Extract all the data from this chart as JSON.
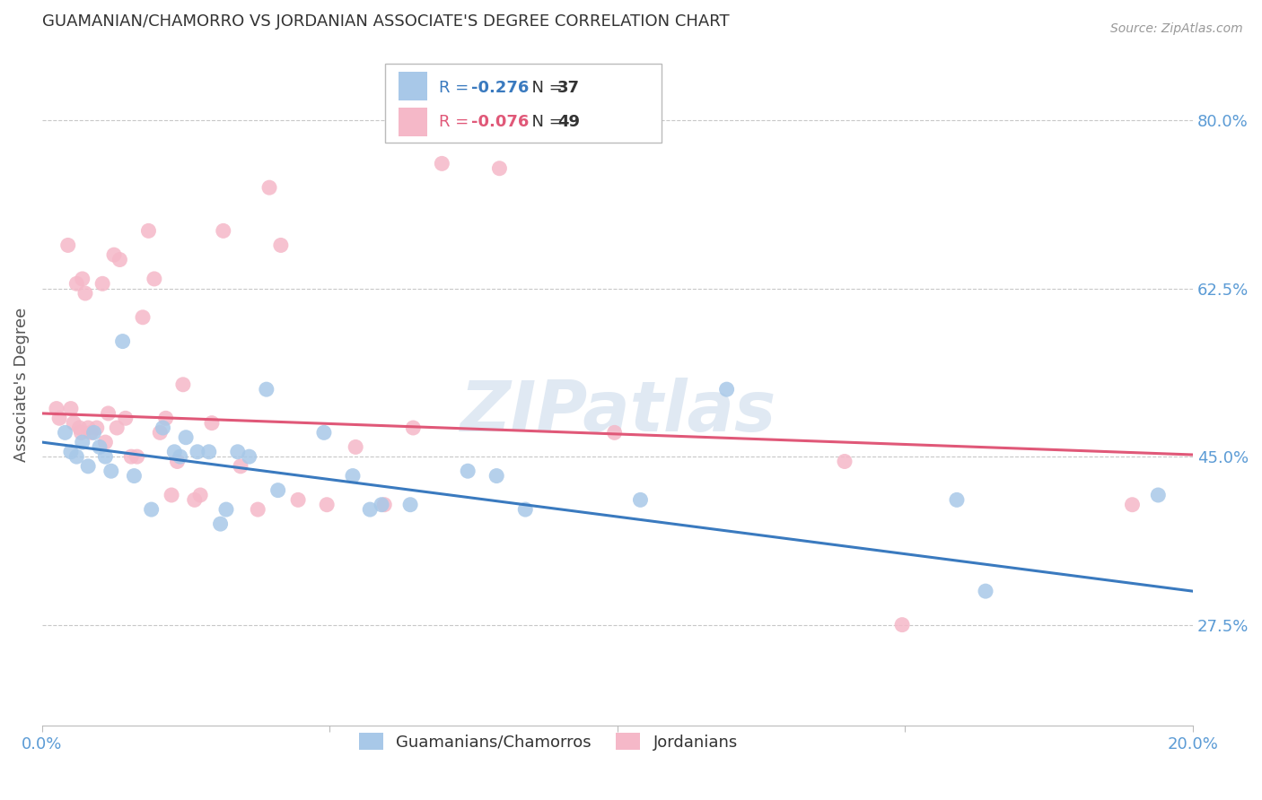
{
  "title": "GUAMANIAN/CHAMORRO VS JORDANIAN ASSOCIATE'S DEGREE CORRELATION CHART",
  "source": "Source: ZipAtlas.com",
  "ylabel": "Associate's Degree",
  "xlim": [
    0.0,
    20.0
  ],
  "ylim": [
    17.0,
    88.0
  ],
  "yticks": [
    27.5,
    45.0,
    62.5,
    80.0
  ],
  "ytick_labels": [
    "27.5%",
    "45.0%",
    "62.5%",
    "80.0%"
  ],
  "blue_R": -0.276,
  "blue_N": 37,
  "pink_R": -0.076,
  "pink_N": 49,
  "blue_color": "#a8c8e8",
  "pink_color": "#f5b8c8",
  "blue_line_color": "#3a7abf",
  "pink_line_color": "#e05878",
  "legend_label_blue": "Guamanians/Chamorros",
  "legend_label_pink": "Jordanians",
  "watermark": "ZIPatlas",
  "background_color": "#ffffff",
  "grid_color": "#c8c8c8",
  "axis_label_color": "#5b9bd5",
  "title_color": "#333333",
  "blue_scatter": [
    [
      0.4,
      47.5
    ],
    [
      0.5,
      45.5
    ],
    [
      0.6,
      45.0
    ],
    [
      0.7,
      46.5
    ],
    [
      0.8,
      44.0
    ],
    [
      0.9,
      47.5
    ],
    [
      1.0,
      46.0
    ],
    [
      1.1,
      45.0
    ],
    [
      1.2,
      43.5
    ],
    [
      1.4,
      57.0
    ],
    [
      1.6,
      43.0
    ],
    [
      1.9,
      39.5
    ],
    [
      2.1,
      48.0
    ],
    [
      2.3,
      45.5
    ],
    [
      2.4,
      45.0
    ],
    [
      2.5,
      47.0
    ],
    [
      2.7,
      45.5
    ],
    [
      2.9,
      45.5
    ],
    [
      3.1,
      38.0
    ],
    [
      3.2,
      39.5
    ],
    [
      3.4,
      45.5
    ],
    [
      3.6,
      45.0
    ],
    [
      3.9,
      52.0
    ],
    [
      4.1,
      41.5
    ],
    [
      4.9,
      47.5
    ],
    [
      5.4,
      43.0
    ],
    [
      5.7,
      39.5
    ],
    [
      5.9,
      40.0
    ],
    [
      6.4,
      40.0
    ],
    [
      7.4,
      43.5
    ],
    [
      7.9,
      43.0
    ],
    [
      8.4,
      39.5
    ],
    [
      10.4,
      40.5
    ],
    [
      11.9,
      52.0
    ],
    [
      15.9,
      40.5
    ],
    [
      16.4,
      31.0
    ],
    [
      19.4,
      41.0
    ]
  ],
  "pink_scatter": [
    [
      0.25,
      50.0
    ],
    [
      0.3,
      49.0
    ],
    [
      0.45,
      67.0
    ],
    [
      0.5,
      50.0
    ],
    [
      0.55,
      48.5
    ],
    [
      0.6,
      63.0
    ],
    [
      0.65,
      48.0
    ],
    [
      0.68,
      47.5
    ],
    [
      0.7,
      63.5
    ],
    [
      0.75,
      62.0
    ],
    [
      0.8,
      48.0
    ],
    [
      0.85,
      47.5
    ],
    [
      0.95,
      48.0
    ],
    [
      1.05,
      63.0
    ],
    [
      1.1,
      46.5
    ],
    [
      1.15,
      49.5
    ],
    [
      1.25,
      66.0
    ],
    [
      1.3,
      48.0
    ],
    [
      1.35,
      65.5
    ],
    [
      1.45,
      49.0
    ],
    [
      1.55,
      45.0
    ],
    [
      1.65,
      45.0
    ],
    [
      1.75,
      59.5
    ],
    [
      1.85,
      68.5
    ],
    [
      1.95,
      63.5
    ],
    [
      2.05,
      47.5
    ],
    [
      2.15,
      49.0
    ],
    [
      2.25,
      41.0
    ],
    [
      2.35,
      44.5
    ],
    [
      2.45,
      52.5
    ],
    [
      2.65,
      40.5
    ],
    [
      2.75,
      41.0
    ],
    [
      2.95,
      48.5
    ],
    [
      3.15,
      68.5
    ],
    [
      3.45,
      44.0
    ],
    [
      3.75,
      39.5
    ],
    [
      3.95,
      73.0
    ],
    [
      4.15,
      67.0
    ],
    [
      4.45,
      40.5
    ],
    [
      4.95,
      40.0
    ],
    [
      5.45,
      46.0
    ],
    [
      5.95,
      40.0
    ],
    [
      6.45,
      48.0
    ],
    [
      6.95,
      75.5
    ],
    [
      7.95,
      75.0
    ],
    [
      9.95,
      47.5
    ],
    [
      13.95,
      44.5
    ],
    [
      14.95,
      27.5
    ],
    [
      18.95,
      40.0
    ]
  ],
  "blue_line_x": [
    0.0,
    20.0
  ],
  "blue_line_y": [
    46.5,
    31.0
  ],
  "pink_line_x": [
    0.0,
    20.0
  ],
  "pink_line_y": [
    49.5,
    45.2
  ]
}
